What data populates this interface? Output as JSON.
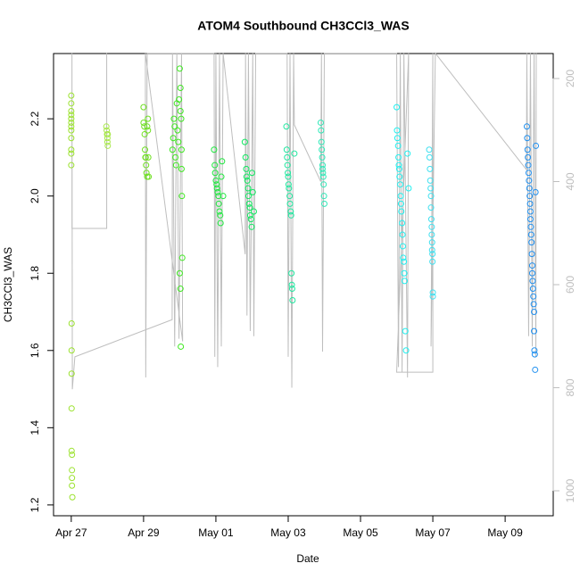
{
  "chart_data": {
    "type": "scatter",
    "title": "ATOM4 Southbound CH3CCl3_WAS",
    "x_label": "Date",
    "y_label": "CH3CCl3_WAS",
    "xlim": [
      -0.49,
      13.33
    ],
    "xticks": [
      {
        "value": 0,
        "label": "Apr 27"
      },
      {
        "value": 2,
        "label": "Apr 29"
      },
      {
        "value": 4,
        "label": "May 01"
      },
      {
        "value": 6,
        "label": "May 03"
      },
      {
        "value": 8,
        "label": "May 05"
      },
      {
        "value": 10,
        "label": "May 07"
      },
      {
        "value": 12,
        "label": "May 09"
      }
    ],
    "ylim": [
      1.172,
      2.369
    ],
    "yticks": [
      1.2,
      1.4,
      1.6,
      1.8,
      {
        "value": 2,
        "label": "2.0"
      },
      2.2
    ],
    "y2lim": [
      1048.5,
      151.5
    ],
    "y2ticks": [
      200,
      400,
      600,
      800,
      1000
    ],
    "y2_color": "#bebebe",
    "series": [
      {
        "color": "#9be22e",
        "x": [
          0,
          0,
          0,
          0,
          0,
          0,
          0,
          0,
          0,
          0,
          0,
          0,
          0.01,
          0.01,
          0.01,
          0.01,
          0.01,
          0.02,
          0.02,
          0.02,
          0.02,
          0.03
        ],
        "values": [
          2.26,
          2.24,
          2.22,
          2.21,
          2.2,
          2.19,
          2.18,
          2.17,
          2.15,
          2.12,
          2.11,
          2.08,
          1.67,
          1.6,
          1.54,
          1.45,
          1.34,
          1.33,
          1.29,
          1.27,
          1.25,
          1.22
        ]
      },
      {
        "color": "#a8e84a",
        "x": [
          0.97,
          0.98,
          0.99,
          1,
          1,
          1.01,
          1.01
        ],
        "values": [
          2.18,
          2.17,
          2.16,
          2.15,
          2.14,
          2.13,
          2.16
        ]
      },
      {
        "color": "#6ee020",
        "x": [
          2,
          2,
          2.02,
          2.03,
          2.04,
          2.05,
          2.06,
          2.07,
          2.08,
          2.1,
          2.1,
          2.12,
          2.12,
          2.13,
          2.14
        ],
        "values": [
          2.23,
          2.19,
          2.18,
          2.16,
          2.12,
          2.1,
          2.1,
          2.08,
          2.06,
          2.05,
          2.18,
          2.17,
          2.2,
          2.1,
          2.05
        ]
      },
      {
        "color": "#3ee820",
        "x": [
          2.8,
          2.82,
          2.84,
          2.86,
          2.88,
          2.9,
          2.92,
          2.94,
          2.96,
          2.98,
          3,
          3.02,
          3.02,
          3.04,
          3.05,
          3.05,
          3.06,
          3.07,
          3.0,
          3.02,
          3.03
        ],
        "values": [
          2.12,
          2.15,
          2.2,
          2.18,
          2.1,
          2.08,
          2.24,
          2.17,
          2.14,
          2.25,
          2.33,
          2.28,
          2.22,
          2.2,
          2.12,
          2.07,
          2.0,
          1.84,
          1.8,
          1.76,
          1.61
        ]
      },
      {
        "color": "#20e840",
        "x": [
          3.95,
          3.97,
          3.98,
          4,
          4.02,
          4.03,
          4.05,
          4.07,
          4.08,
          4.1,
          4.12,
          4.13,
          4.15,
          4.17,
          4.2
        ],
        "values": [
          2.12,
          2.08,
          2.06,
          2.04,
          2.03,
          2.02,
          2.01,
          2.0,
          1.98,
          1.96,
          1.95,
          1.93,
          2.05,
          2.09,
          2.0
        ]
      },
      {
        "color": "#10e860",
        "x": [
          4.8,
          4.82,
          4.84,
          4.85,
          4.87,
          4.89,
          4.9,
          4.92,
          4.94,
          4.95,
          4.97,
          4.99,
          5,
          5.02,
          5.05
        ],
        "values": [
          2.14,
          2.1,
          2.07,
          2.05,
          2.04,
          2.02,
          2.0,
          1.98,
          1.97,
          1.95,
          1.94,
          1.92,
          2.06,
          2.01,
          1.96
        ]
      },
      {
        "color": "#20e8a0",
        "x": [
          5.95,
          5.96,
          5.97,
          5.98,
          5.99,
          6,
          6.01,
          6.02,
          6.04,
          6.05,
          6.07,
          6.08,
          6.09,
          6.1,
          6.11,
          6.12,
          6.17
        ],
        "values": [
          2.18,
          2.12,
          2.1,
          2.08,
          2.06,
          2.05,
          2.03,
          2.02,
          2.0,
          1.98,
          1.96,
          1.95,
          1.8,
          1.77,
          1.76,
          1.73,
          2.11
        ]
      },
      {
        "color": "#30e8b8",
        "x": [
          6.9,
          6.91,
          6.92,
          6.93,
          6.94,
          6.95,
          6.96,
          6.97,
          6.98,
          6.99,
          7,
          6.95
        ],
        "values": [
          2.19,
          2.17,
          2.14,
          2.12,
          2.1,
          2.08,
          2.06,
          2.05,
          2.03,
          2.0,
          1.98,
          2.07
        ]
      },
      {
        "color": "#20f0f0",
        "x": [
          9.0,
          9.01,
          9.02,
          9.04,
          9.05,
          9.06,
          9.07,
          9.08,
          9.1,
          9.11,
          9.12,
          9.13,
          9.15,
          9.16,
          9.17,
          9.18,
          9.2,
          9.21,
          9.22,
          9.24,
          9.26,
          9.3,
          9.33
        ],
        "values": [
          2.23,
          2.17,
          2.15,
          2.13,
          2.1,
          2.08,
          2.07,
          2.05,
          2.03,
          2.0,
          1.98,
          1.96,
          1.93,
          1.9,
          1.87,
          1.84,
          1.83,
          1.8,
          1.78,
          1.65,
          1.6,
          2.11,
          2.02
        ]
      },
      {
        "color": "#40e0f0",
        "x": [
          9.9,
          9.91,
          9.92,
          9.93,
          9.94,
          9.95,
          9.95,
          9.96,
          9.97,
          9.97,
          9.98,
          9.98,
          9.99,
          9.99,
          10,
          10
        ],
        "values": [
          2.12,
          2.1,
          2.07,
          2.04,
          2.02,
          2.0,
          1.97,
          1.94,
          1.92,
          1.9,
          1.88,
          1.86,
          1.85,
          1.83,
          1.75,
          1.74
        ]
      },
      {
        "color": "#2090f0",
        "x": [
          12.6,
          12.61,
          12.62,
          12.63,
          12.64,
          12.65,
          12.66,
          12.67,
          12.68,
          12.69,
          12.7,
          12.7,
          12.71,
          12.72,
          12.73,
          12.74,
          12.75,
          12.75,
          12.76,
          12.77,
          12.78,
          12.79,
          12.8,
          12.8,
          12.81,
          12.82,
          12.83,
          12.85,
          12.84
        ],
        "values": [
          2.18,
          2.15,
          2.12,
          2.1,
          2.08,
          2.06,
          2.04,
          2.02,
          2.0,
          1.98,
          1.96,
          1.94,
          1.92,
          1.9,
          1.88,
          1.85,
          1.82,
          1.8,
          1.78,
          1.76,
          1.74,
          1.72,
          1.7,
          1.65,
          1.6,
          1.59,
          1.55,
          2.13,
          2.01
        ]
      },
      {
        "type": "line",
        "axis": "y2",
        "color": "#bebebe",
        "x": [
          0.98,
          0.98,
          0.02,
          0.02,
          0.03,
          0.1,
          2.79,
          2.8,
          2.86,
          2.92,
          2.98,
          3.05,
          3.08,
          2.05,
          2.06,
          2.1,
          3.95,
          3.97,
          4.0,
          4.05,
          4.1,
          4.15,
          4.2,
          4.81,
          4.82,
          4.86,
          4.9,
          4.95,
          5.02,
          5.05,
          5.1,
          5.97,
          6.0,
          6.05,
          6.1,
          6.15,
          6.17,
          6.9,
          6.92,
          6.95,
          7.0,
          9.0,
          9.05,
          9.1,
          9.15,
          9.2,
          9.3,
          9.33,
          9.0,
          10.0,
          10.0,
          9.95,
          10.07,
          12.59,
          12.6,
          12.65,
          12.7,
          12.75,
          12.8,
          12.85,
          12.86
        ],
        "values": [
          151,
          491,
          491,
          151,
          803,
          740,
          668,
          151,
          720,
          151,
          705,
          151,
          710,
          151,
          780,
          151,
          151,
          740,
          151,
          760,
          151,
          720,
          151,
          541,
          151,
          660,
          151,
          690,
          151,
          700,
          151,
          151,
          740,
          151,
          800,
          151,
          290,
          400,
          151,
          730,
          151,
          151,
          760,
          151,
          770,
          151,
          780,
          151,
          770,
          770,
          151,
          720,
          151,
          377,
          151,
          700,
          151,
          720,
          151,
          740,
          151
        ]
      }
    ]
  }
}
